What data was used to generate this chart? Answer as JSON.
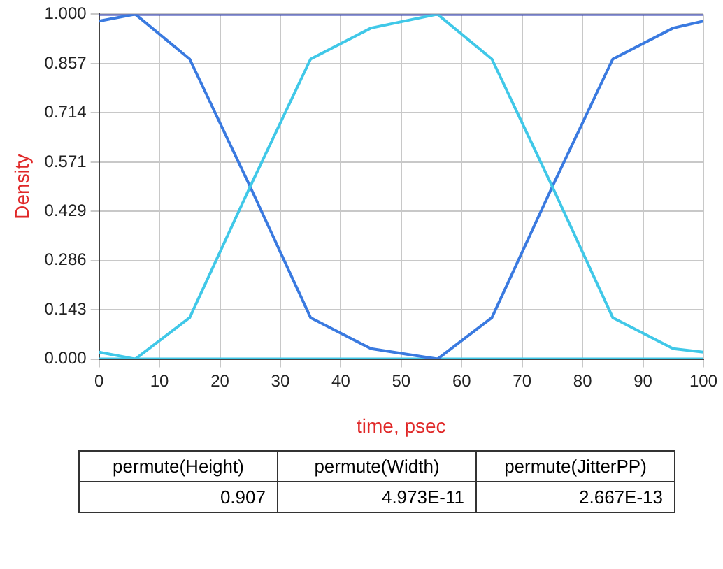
{
  "chart_data": {
    "type": "line",
    "xlabel": "time, psec",
    "ylabel": "Density",
    "xlim": [
      0,
      100
    ],
    "xticks": [
      0,
      10,
      20,
      30,
      40,
      50,
      60,
      70,
      80,
      90,
      100
    ],
    "ylim": [
      0,
      1
    ],
    "yticks": [
      {
        "value": 0,
        "label": "0.000"
      },
      {
        "value": 0.143,
        "label": "0.143"
      },
      {
        "value": 0.286,
        "label": "0.286"
      },
      {
        "value": 0.429,
        "label": "0.429"
      },
      {
        "value": 0.571,
        "label": "0.571"
      },
      {
        "value": 0.714,
        "label": "0.714"
      },
      {
        "value": 0.857,
        "label": "0.857"
      },
      {
        "value": 1,
        "label": "1.000"
      }
    ],
    "grid": true,
    "legend": false,
    "marker": "none",
    "line_style": "solid",
    "series": [
      {
        "color": "#40c8e8",
        "x": [
          0,
          6,
          15,
          25,
          35,
          45,
          56,
          65,
          75,
          85,
          95,
          100
        ],
        "values": [
          0.02,
          0,
          0.12,
          0.5,
          0.87,
          0.96,
          1,
          0.87,
          0.5,
          0.12,
          0.03,
          0.02
        ]
      },
      {
        "color": "#3a7ae0",
        "x": [
          0,
          6,
          15,
          25,
          35,
          45,
          56,
          65,
          75,
          85,
          95,
          100
        ],
        "values": [
          0.98,
          1,
          0.87,
          0.5,
          0.12,
          0.03,
          0,
          0.12,
          0.5,
          0.87,
          0.96,
          0.98
        ]
      },
      {
        "color": "#2030b0",
        "x": [
          0,
          100
        ],
        "values": [
          1,
          1
        ]
      },
      {
        "color": "#40c8e8",
        "x": [
          0,
          100
        ],
        "values": [
          0,
          0
        ]
      }
    ],
    "annotations": [
      "permute(Height)",
      "permute(Width)",
      "permute(JitterPP)",
      "0.907",
      "4.973E-11",
      "2.667E-13"
    ]
  }
}
